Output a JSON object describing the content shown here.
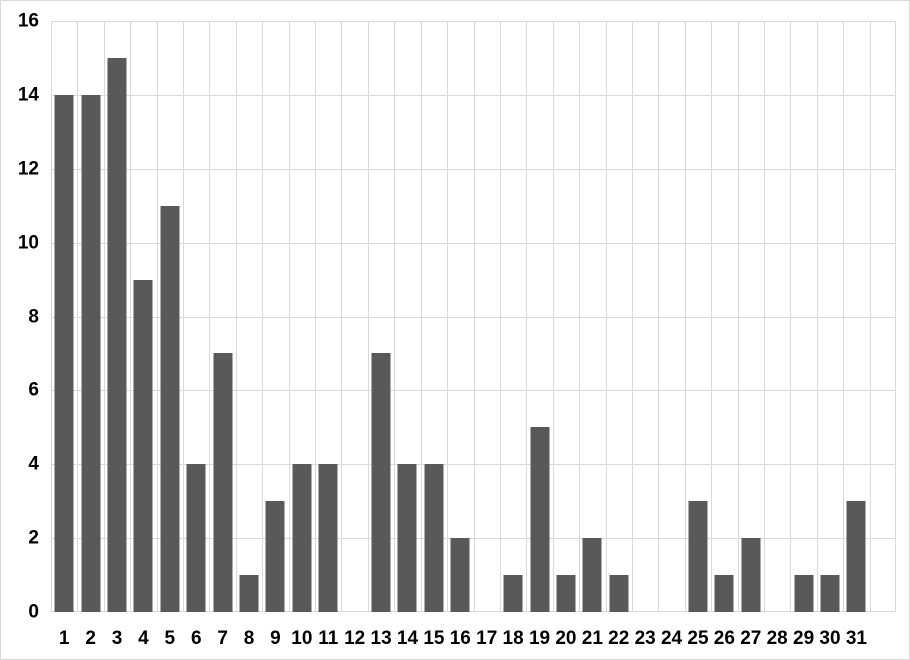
{
  "chart": {
    "background": "#ffffff",
    "border_color": "#d9d9d9",
    "bar_color": "#595959",
    "gridline_color": "#d9d9d9",
    "label_color": "#000000"
  },
  "chart_data": {
    "type": "bar",
    "title": "",
    "xlabel": "",
    "ylabel": "",
    "categories": [
      "1",
      "2",
      "3",
      "4",
      "5",
      "6",
      "7",
      "8",
      "9",
      "10",
      "11",
      "12",
      "13",
      "14",
      "15",
      "16",
      "17",
      "18",
      "19",
      "20",
      "21",
      "22",
      "23",
      "24",
      "25",
      "26",
      "27",
      "28",
      "29",
      "30",
      "31"
    ],
    "values": [
      14,
      14,
      15,
      9,
      11,
      4,
      7,
      1,
      3,
      4,
      4,
      0,
      7,
      4,
      4,
      2,
      0,
      1,
      5,
      1,
      2,
      1,
      0,
      0,
      3,
      1,
      2,
      0,
      1,
      1,
      3
    ],
    "ylim": [
      0,
      16
    ],
    "ytick_step": 2,
    "ytick_labels": [
      "0",
      "2",
      "4",
      "6",
      "8",
      "10",
      "12",
      "14",
      "16"
    ],
    "grid": "both",
    "legend": "none",
    "extra_right_slots": 1
  }
}
